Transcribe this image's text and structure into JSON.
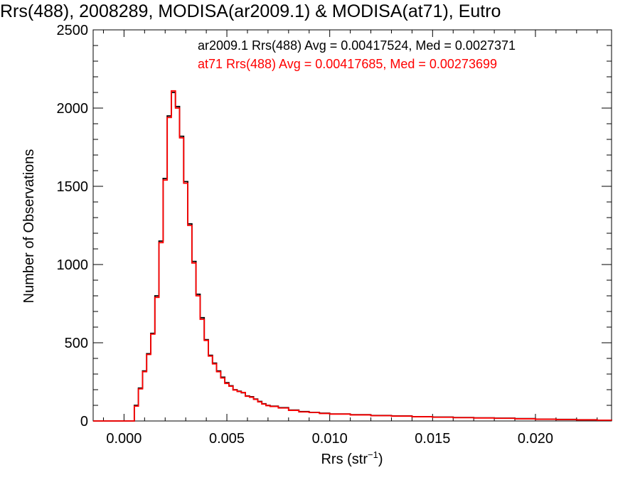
{
  "chart_data": {
    "type": "line",
    "title": "Rrs(488), 2008289, MODISA(ar2009.1) & MODISA(at71), Eutro",
    "xlabel": "Rrs (str",
    "xlabel_sup": "−1",
    "xlabel_close": ")",
    "ylabel": "Number of Observations",
    "xlim": [
      -0.0015,
      0.0237
    ],
    "ylim": [
      0,
      2500
    ],
    "x_ticks": [
      {
        "v": 0.0,
        "label": "0.000"
      },
      {
        "v": 0.005,
        "label": "0.005"
      },
      {
        "v": 0.01,
        "label": "0.010"
      },
      {
        "v": 0.015,
        "label": "0.015"
      },
      {
        "v": 0.02,
        "label": "0.020"
      }
    ],
    "y_ticks": [
      {
        "v": 0,
        "label": "0"
      },
      {
        "v": 500,
        "label": "500"
      },
      {
        "v": 1000,
        "label": "1000"
      },
      {
        "v": 1500,
        "label": "1500"
      },
      {
        "v": 2000,
        "label": "2000"
      },
      {
        "v": 2500,
        "label": "2500"
      }
    ],
    "x_minor_step": 0.001,
    "y_minor_step": 100,
    "grid": false,
    "step_style": "histogram",
    "series": [
      {
        "name": "ar2009.1",
        "color": "#000000",
        "legend_text": "ar2009.1 Rrs(488) Avg = 0.00417524, Med = 0.0027371",
        "points": [
          [
            -0.0015,
            0
          ],
          [
            0.0003,
            0
          ],
          [
            0.0005,
            100
          ],
          [
            0.0007,
            210
          ],
          [
            0.0009,
            320
          ],
          [
            0.0011,
            430
          ],
          [
            0.0013,
            560
          ],
          [
            0.0015,
            800
          ],
          [
            0.0017,
            1150
          ],
          [
            0.0019,
            1550
          ],
          [
            0.0021,
            1950
          ],
          [
            0.0023,
            2100
          ],
          [
            0.0025,
            2010
          ],
          [
            0.0027,
            1820
          ],
          [
            0.0029,
            1530
          ],
          [
            0.0031,
            1260
          ],
          [
            0.0033,
            1020
          ],
          [
            0.0035,
            810
          ],
          [
            0.0037,
            660
          ],
          [
            0.0039,
            520
          ],
          [
            0.0041,
            420
          ],
          [
            0.0043,
            370
          ],
          [
            0.0045,
            320
          ],
          [
            0.0047,
            280
          ],
          [
            0.0049,
            245
          ],
          [
            0.0051,
            225
          ],
          [
            0.0053,
            200
          ],
          [
            0.0055,
            190
          ],
          [
            0.0057,
            180
          ],
          [
            0.0059,
            160
          ],
          [
            0.0061,
            155
          ],
          [
            0.0063,
            140
          ],
          [
            0.0065,
            125
          ],
          [
            0.0067,
            110
          ],
          [
            0.0069,
            100
          ],
          [
            0.0071,
            95
          ],
          [
            0.0075,
            85
          ],
          [
            0.008,
            70
          ],
          [
            0.0085,
            60
          ],
          [
            0.009,
            55
          ],
          [
            0.0095,
            50
          ],
          [
            0.01,
            45
          ],
          [
            0.011,
            40
          ],
          [
            0.012,
            35
          ],
          [
            0.013,
            32
          ],
          [
            0.014,
            28
          ],
          [
            0.015,
            25
          ],
          [
            0.016,
            22
          ],
          [
            0.017,
            20
          ],
          [
            0.018,
            18
          ],
          [
            0.019,
            15
          ],
          [
            0.02,
            12
          ],
          [
            0.021,
            10
          ],
          [
            0.022,
            8
          ],
          [
            0.023,
            5
          ],
          [
            0.0237,
            4
          ]
        ]
      },
      {
        "name": "at71",
        "color": "#ff0000",
        "legend_text": "at71 Rrs(488) Avg = 0.00417685, Med = 0.00273699",
        "points": [
          [
            -0.0015,
            0
          ],
          [
            0.0003,
            0
          ],
          [
            0.0005,
            95
          ],
          [
            0.0007,
            205
          ],
          [
            0.0009,
            315
          ],
          [
            0.0011,
            425
          ],
          [
            0.0013,
            555
          ],
          [
            0.0015,
            790
          ],
          [
            0.0017,
            1140
          ],
          [
            0.0019,
            1540
          ],
          [
            0.0021,
            1940
          ],
          [
            0.0023,
            2110
          ],
          [
            0.0025,
            2000
          ],
          [
            0.0027,
            1810
          ],
          [
            0.0029,
            1520
          ],
          [
            0.0031,
            1250
          ],
          [
            0.0033,
            1010
          ],
          [
            0.0035,
            800
          ],
          [
            0.0037,
            650
          ],
          [
            0.0039,
            515
          ],
          [
            0.0041,
            415
          ],
          [
            0.0043,
            365
          ],
          [
            0.0045,
            315
          ],
          [
            0.0047,
            275
          ],
          [
            0.0049,
            240
          ],
          [
            0.0051,
            222
          ],
          [
            0.0053,
            198
          ],
          [
            0.0055,
            188
          ],
          [
            0.0057,
            182
          ],
          [
            0.0059,
            158
          ],
          [
            0.0061,
            152
          ],
          [
            0.0063,
            138
          ],
          [
            0.0065,
            122
          ],
          [
            0.0067,
            108
          ],
          [
            0.0069,
            98
          ],
          [
            0.0071,
            93
          ],
          [
            0.0075,
            83
          ],
          [
            0.008,
            68
          ],
          [
            0.0085,
            58
          ],
          [
            0.009,
            54
          ],
          [
            0.0095,
            48
          ],
          [
            0.01,
            44
          ],
          [
            0.011,
            39
          ],
          [
            0.012,
            34
          ],
          [
            0.013,
            31
          ],
          [
            0.014,
            27
          ],
          [
            0.015,
            24
          ],
          [
            0.016,
            21
          ],
          [
            0.017,
            19
          ],
          [
            0.018,
            17
          ],
          [
            0.019,
            14
          ],
          [
            0.02,
            11
          ],
          [
            0.021,
            9
          ],
          [
            0.022,
            7
          ],
          [
            0.023,
            5
          ],
          [
            0.0237,
            3
          ]
        ]
      }
    ]
  }
}
